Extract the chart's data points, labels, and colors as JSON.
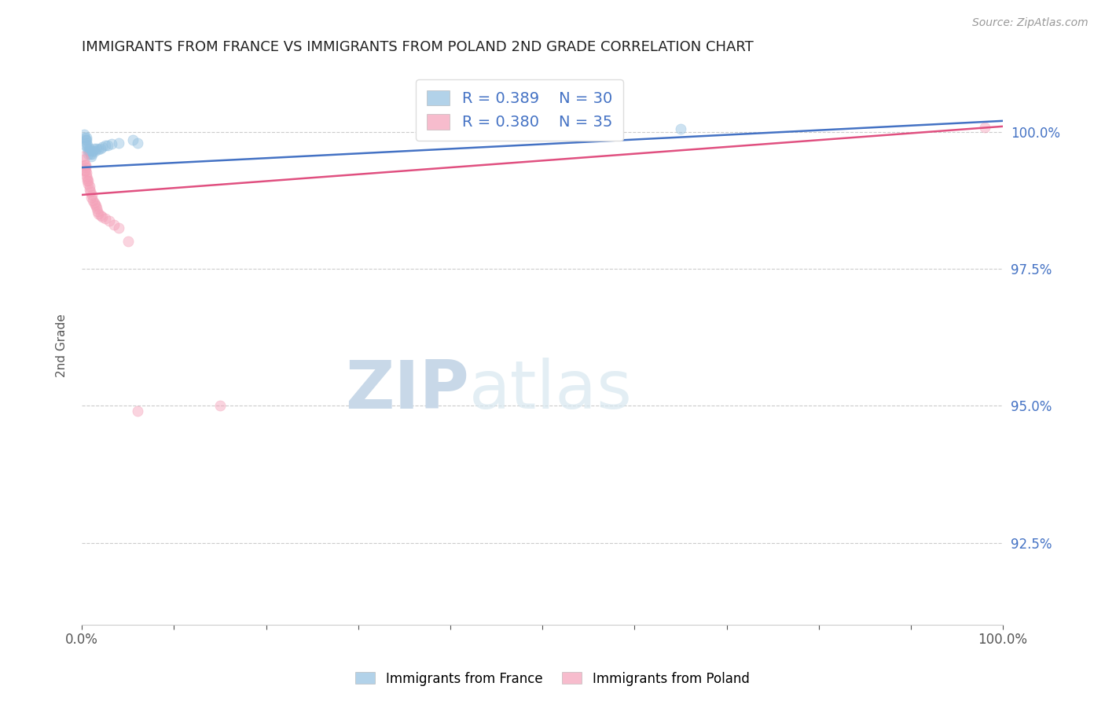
{
  "title": "IMMIGRANTS FROM FRANCE VS IMMIGRANTS FROM POLAND 2ND GRADE CORRELATION CHART",
  "source": "Source: ZipAtlas.com",
  "ylabel": "2nd Grade",
  "xlim": [
    0.0,
    1.0
  ],
  "ylim": [
    0.91,
    1.012
  ],
  "yticks": [
    0.925,
    0.95,
    0.975,
    1.0
  ],
  "ytick_labels": [
    "92.5%",
    "95.0%",
    "97.5%",
    "100.0%"
  ],
  "france_R": 0.389,
  "france_N": 30,
  "poland_R": 0.38,
  "poland_N": 35,
  "france_color": "#92c0e0",
  "poland_color": "#f4a0b8",
  "france_line_color": "#4472c4",
  "poland_line_color": "#e05080",
  "title_color": "#222222",
  "axis_label_color": "#555555",
  "grid_color": "#cccccc",
  "watermark_color": "#ccd8e8",
  "france_x": [
    0.002,
    0.003,
    0.004,
    0.004,
    0.005,
    0.005,
    0.005,
    0.006,
    0.006,
    0.007,
    0.007,
    0.008,
    0.008,
    0.009,
    0.01,
    0.011,
    0.012,
    0.013,
    0.014,
    0.016,
    0.018,
    0.02,
    0.022,
    0.025,
    0.028,
    0.032,
    0.04,
    0.055,
    0.06,
    0.65
  ],
  "france_y": [
    0.9995,
    0.999,
    0.9985,
    0.9975,
    0.998,
    0.9985,
    0.999,
    0.997,
    0.9975,
    0.996,
    0.9965,
    0.9965,
    0.997,
    0.996,
    0.9955,
    0.996,
    0.9965,
    0.997,
    0.9965,
    0.997,
    0.9968,
    0.997,
    0.9972,
    0.9975,
    0.9975,
    0.9978,
    0.998,
    0.9985,
    0.998,
    1.0005
  ],
  "poland_x": [
    0.001,
    0.002,
    0.003,
    0.003,
    0.004,
    0.004,
    0.004,
    0.005,
    0.005,
    0.006,
    0.006,
    0.007,
    0.007,
    0.008,
    0.008,
    0.009,
    0.01,
    0.011,
    0.012,
    0.013,
    0.014,
    0.015,
    0.016,
    0.017,
    0.018,
    0.02,
    0.022,
    0.025,
    0.03,
    0.035,
    0.04,
    0.05,
    0.06,
    0.15,
    0.98
  ],
  "poland_y": [
    0.9955,
    0.995,
    0.994,
    0.993,
    0.9935,
    0.994,
    0.993,
    0.992,
    0.9925,
    0.991,
    0.9915,
    0.9905,
    0.991,
    0.9895,
    0.99,
    0.989,
    0.988,
    0.9885,
    0.9875,
    0.987,
    0.9868,
    0.9865,
    0.986,
    0.9855,
    0.985,
    0.9848,
    0.9845,
    0.9842,
    0.9838,
    0.983,
    0.9825,
    0.98,
    0.949,
    0.95,
    1.0008
  ],
  "france_trendline_x": [
    0.0,
    1.0
  ],
  "france_trendline_y": [
    0.9935,
    1.002
  ],
  "poland_trendline_x": [
    0.0,
    1.0
  ],
  "poland_trendline_y": [
    0.9885,
    1.001
  ],
  "marker_size": 90,
  "marker_alpha": 0.45,
  "line_width": 1.8
}
